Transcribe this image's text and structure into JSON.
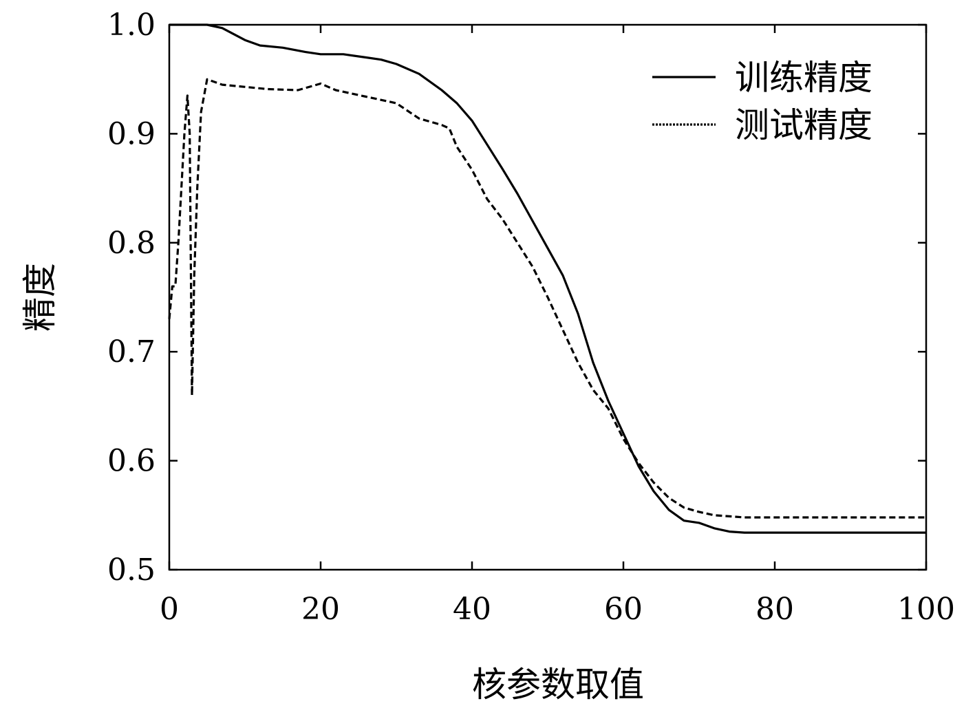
{
  "chart_data": {
    "type": "line",
    "xlabel": "核参数取值",
    "ylabel": "精度",
    "xlim": [
      0,
      100
    ],
    "ylim": [
      0.5,
      1.0
    ],
    "xticks": [
      0,
      20,
      40,
      60,
      80,
      100
    ],
    "yticks": [
      0.5,
      0.6,
      0.7,
      0.8,
      0.9,
      1.0
    ],
    "xtick_labels": [
      "0",
      "20",
      "40",
      "60",
      "80",
      "100"
    ],
    "ytick_labels": [
      "0.5",
      "0.6",
      "0.7",
      "0.8",
      "0.9",
      "1.0"
    ],
    "grid": false,
    "legend_position": "top-right",
    "series": [
      {
        "name": "训练精度",
        "style": "solid",
        "x": [
          0,
          5,
          7,
          10,
          12,
          15,
          18,
          20,
          23,
          26,
          28,
          30,
          33,
          36,
          38,
          40,
          42,
          44,
          46,
          48,
          50,
          52,
          54,
          56,
          58,
          60,
          62,
          64,
          66,
          68,
          70,
          72,
          74,
          76,
          80,
          100
        ],
        "y": [
          1.0,
          1.0,
          0.997,
          0.986,
          0.981,
          0.979,
          0.975,
          0.973,
          0.973,
          0.97,
          0.968,
          0.964,
          0.955,
          0.94,
          0.928,
          0.912,
          0.89,
          0.868,
          0.845,
          0.82,
          0.795,
          0.77,
          0.735,
          0.69,
          0.655,
          0.625,
          0.595,
          0.572,
          0.555,
          0.545,
          0.543,
          0.538,
          0.535,
          0.534,
          0.534,
          0.534
        ]
      },
      {
        "name": "测试精度",
        "style": "dashed",
        "x": [
          0,
          0.4,
          0.8,
          1.2,
          1.6,
          2.0,
          2.4,
          2.7,
          3.0,
          3.3,
          3.7,
          4.2,
          5,
          7,
          10,
          13,
          17,
          20,
          22,
          26,
          30,
          33,
          36,
          37,
          38,
          40,
          42,
          44,
          46,
          48,
          50,
          52,
          54,
          56,
          58,
          60,
          62,
          64,
          66,
          68,
          70,
          72,
          74,
          76,
          80,
          100
        ],
        "y": [
          0.73,
          0.76,
          0.76,
          0.8,
          0.85,
          0.9,
          0.935,
          0.9,
          0.66,
          0.77,
          0.85,
          0.92,
          0.95,
          0.945,
          0.943,
          0.941,
          0.94,
          0.946,
          0.94,
          0.934,
          0.928,
          0.914,
          0.908,
          0.905,
          0.888,
          0.867,
          0.84,
          0.822,
          0.8,
          0.778,
          0.75,
          0.72,
          0.69,
          0.665,
          0.648,
          0.62,
          0.598,
          0.58,
          0.566,
          0.557,
          0.553,
          0.55,
          0.549,
          0.548,
          0.548,
          0.548
        ]
      }
    ]
  }
}
